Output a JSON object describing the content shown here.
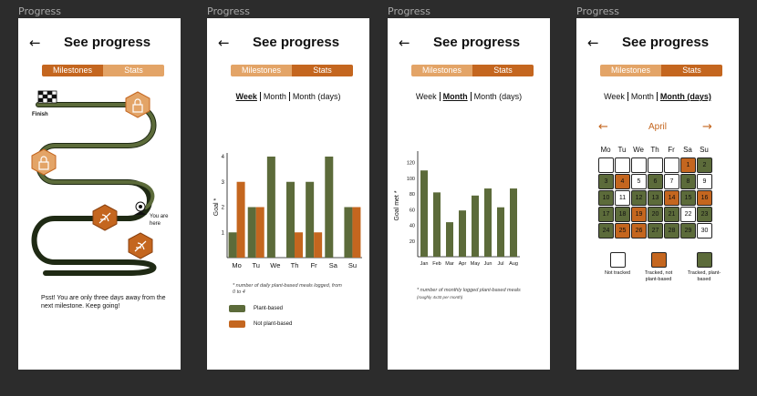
{
  "frames": [
    "Progress",
    "Progress",
    "Progress",
    "Progress"
  ],
  "header": {
    "back_icon": "←",
    "title": "See progress"
  },
  "tabs": {
    "milestones": "Milestones",
    "stats": "Stats"
  },
  "ranges": {
    "week": "Week",
    "month": "Month",
    "month_days": "Month (days)"
  },
  "screen1": {
    "finish": "Finish",
    "you_are_here": "You are here",
    "message": "Psst! You are only three days away from the next milestone. Keep going!"
  },
  "screen2": {
    "ylabel": "Goal *",
    "footnote": "* number of daily plant-based meals logged, from 0 to 4",
    "legend_plant": "Plant-based",
    "legend_not": "Not plant-based"
  },
  "screen3": {
    "ylabel": "Goal met *",
    "footnote_main": "* number of monthly logged plant-based meals",
    "footnote_sub": "(roughly 4x30 per month)"
  },
  "screen4": {
    "month": "April",
    "prev_icon": "←",
    "next_icon": "→",
    "weekdays": [
      "Mo",
      "Tu",
      "We",
      "Th",
      "Fr",
      "Sa",
      "Su"
    ],
    "keys": {
      "not_tracked": "Not tracked",
      "tracked_not": "Tracked, not plant-based",
      "tracked_plant": "Tracked, plant-based"
    }
  },
  "colors": {
    "green": "#5c6b3a",
    "orange": "#c4661f",
    "light_orange": "#e3a467",
    "dark_green": "#1f2a14"
  },
  "chart_data": [
    {
      "type": "bar",
      "categories": [
        "Mo",
        "Tu",
        "We",
        "Th",
        "Fr",
        "Sa",
        "Su"
      ],
      "series": [
        {
          "name": "Plant-based",
          "values": [
            1,
            2,
            4,
            3,
            3,
            4,
            2
          ]
        },
        {
          "name": "Not plant-based",
          "values": [
            3,
            2,
            0,
            1,
            1,
            0,
            2
          ]
        }
      ],
      "yticks": [
        1,
        2,
        3,
        4
      ],
      "ylim": [
        0,
        4
      ],
      "ylabel": "Goal *"
    },
    {
      "type": "bar",
      "categories": [
        "Jan",
        "Feb",
        "Mar",
        "Apr",
        "May",
        "Jun",
        "Jul",
        "Aug"
      ],
      "series": [
        {
          "values": [
            110,
            82,
            44,
            59,
            78,
            87,
            63,
            87
          ]
        }
      ],
      "yticks": [
        20,
        40,
        60,
        80,
        100,
        120
      ],
      "ylim": [
        0,
        130
      ],
      "ylabel": "Goal met *"
    },
    {
      "type": "table",
      "title": "April",
      "columns": [
        "Mo",
        "Tu",
        "We",
        "Th",
        "Fr",
        "Sa",
        "Su"
      ],
      "leading_blank_days": 5,
      "days": [
        {
          "d": "1",
          "s": "o"
        },
        {
          "d": "2",
          "s": "g"
        },
        {
          "d": "3",
          "s": "g"
        },
        {
          "d": "4",
          "s": "o"
        },
        {
          "d": "5",
          "s": "w"
        },
        {
          "d": "6",
          "s": "g"
        },
        {
          "d": "7",
          "s": "w"
        },
        {
          "d": "8",
          "s": "g"
        },
        {
          "d": "9",
          "s": "w"
        },
        {
          "d": "10",
          "s": "g"
        },
        {
          "d": "11",
          "s": "w"
        },
        {
          "d": "12",
          "s": "g"
        },
        {
          "d": "13",
          "s": "g"
        },
        {
          "d": "14",
          "s": "o"
        },
        {
          "d": "15",
          "s": "g"
        },
        {
          "d": "16",
          "s": "o"
        },
        {
          "d": "17",
          "s": "g"
        },
        {
          "d": "18",
          "s": "g"
        },
        {
          "d": "19",
          "s": "o"
        },
        {
          "d": "20",
          "s": "g"
        },
        {
          "d": "21",
          "s": "g"
        },
        {
          "d": "22",
          "s": "w"
        },
        {
          "d": "23",
          "s": "g"
        },
        {
          "d": "24",
          "s": "g"
        },
        {
          "d": "25",
          "s": "o"
        },
        {
          "d": "26",
          "s": "o"
        },
        {
          "d": "27",
          "s": "g"
        },
        {
          "d": "28",
          "s": "g"
        },
        {
          "d": "29",
          "s": "g"
        },
        {
          "d": "30",
          "s": "w"
        }
      ]
    }
  ]
}
